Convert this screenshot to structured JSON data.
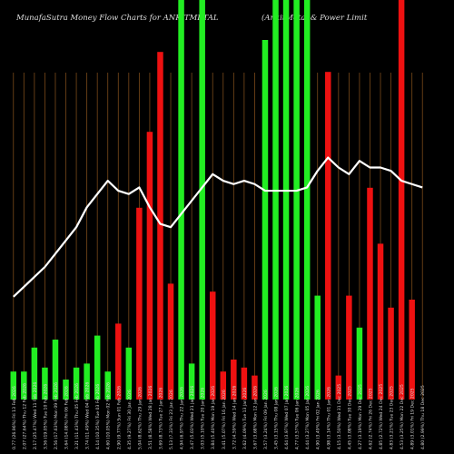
{
  "chart_data": {
    "type": "bar+line",
    "title": "MunafaSutra  Money Flow  Charts for ANKITMETAL",
    "subtitle": "(AnkitMetal & Power Limit",
    "colors": {
      "up": "#22ee22",
      "down": "#ee1111",
      "line": "#ffffff",
      "grid": "#7a4a1a",
      "bg": "#000000"
    },
    "ylim": [
      0,
      100
    ],
    "categories": [
      "Fri 13 Feb 2026",
      "Thu 12 Feb 2026",
      "Wed 11 Feb 2026",
      "Tue 10 Feb 2026",
      "Mon 09 Feb 2026",
      "Fri 06 Feb 2026",
      "Thu 05 Feb 2026",
      "Wed 04 Feb 2026",
      "Tue 03 Feb 2026",
      "Mon 02 Feb 2026",
      "Sun 01 Feb 2026",
      "Fri 30 Jan 2026",
      "Thu 29 Jan 2026",
      "Wed 28 Jan 2026",
      "Tue 27 Jan 2026",
      "Fri 23 Jan 2026",
      "Thu 22 Jan 2026",
      "Wed 21 Jan 2026",
      "Tue 20 Jan 2026",
      "Mon 19 Jan 2026",
      "Fri 16 Jan 2026",
      "Wed 14 Jan 2026",
      "Tue 13 Jan 2026",
      "Mon 12 Jan 2026",
      "Fri 09 Jan 2026",
      "Thu 08 Jan 2026",
      "Wed 07 Jan 2026",
      "Tue 06 Jan 2026",
      "Mon 05 Jan 2026",
      "Fri 02 Jan 2026",
      "Thu 01 Jan 2026",
      "Wed 31 Dec 2025",
      "Tue 30 Dec 2025",
      "Mon 29 Dec 2025",
      "Fri 26 Dec 2025",
      "Wed 24 Dec 2025",
      "Tue 23 Dec 2025",
      "Mon 22 Dec 2025",
      "Fri 19 Dec 2025",
      "Thu 18 Dec 2025"
    ],
    "tick_labels": [
      "0.77 (26.96%)",
      "2.07 (27.64%)",
      "2.17 (25.47%)",
      "3.56 (19.05%)",
      "2.56 (17.63%)",
      "3.64 (14.08%)",
      "3.21 (11.43%)",
      "3.74 (11.49%)",
      "4.14 (10.35%)",
      "4.60 (10.05%)",
      "2.90 (9.77%)",
      "4.35 (9.27%)",
      "5.04 (8.62%)",
      "3.51 (8.58%)",
      "3.69 (8.73%)",
      "5.13 (7.33%)",
      "4.94 (6.97%)",
      "3.47 (5.03%)",
      "3.03 (5.10%)",
      "3.84 (5.40%)",
      "3.41 (5.07%)",
      "3.72 (4.59%)",
      "3.62 (4.09%)",
      "3.67 (3.68%)",
      "3.57 (3.24%)",
      "3.45 (3.15%)",
      "4.64 (3.97%)",
      "4.77 (3.57%)",
      "4.44 (3.27%)",
      "4.90 (3.49%)",
      "4.98 (3.14%)",
      "4.15 (3.50%)",
      "4.45 (3.08%)",
      "4.27 (3.19%)",
      "4.62 (2.74%)",
      "4.85 (2.72%)",
      "4.83 (3.21%)",
      "4.53 (3.25%)",
      "4.89 (3.01%)",
      "4.80 (2.99%)"
    ],
    "series": [
      {
        "type": "bar",
        "values": [
          7,
          7,
          13,
          8,
          15,
          5,
          8,
          9,
          16,
          7,
          19,
          13,
          48,
          67,
          87,
          29,
          100,
          9,
          100,
          27,
          7,
          10,
          8,
          6,
          90,
          100,
          100,
          100,
          100,
          26,
          82,
          6,
          26,
          18,
          53,
          39,
          23,
          100,
          25,
          0
        ],
        "direction": [
          "up",
          "up",
          "up",
          "up",
          "up",
          "up",
          "up",
          "up",
          "up",
          "up",
          "down",
          "up",
          "down",
          "down",
          "down",
          "down",
          "up",
          "up",
          "up",
          "down",
          "down",
          "down",
          "down",
          "down",
          "up",
          "up",
          "up",
          "up",
          "up",
          "up",
          "down",
          "down",
          "down",
          "up",
          "down",
          "down",
          "down",
          "down",
          "down",
          "down"
        ]
      },
      {
        "type": "line",
        "values": [
          31,
          34,
          37,
          40,
          44,
          48,
          52,
          58,
          62,
          66,
          63,
          62,
          64,
          58,
          53,
          52,
          56,
          60,
          64,
          68,
          66,
          65,
          66,
          65,
          63,
          63,
          63,
          63,
          64,
          69,
          73,
          70,
          68,
          72,
          70,
          70,
          69,
          66,
          65,
          64
        ]
      }
    ]
  }
}
